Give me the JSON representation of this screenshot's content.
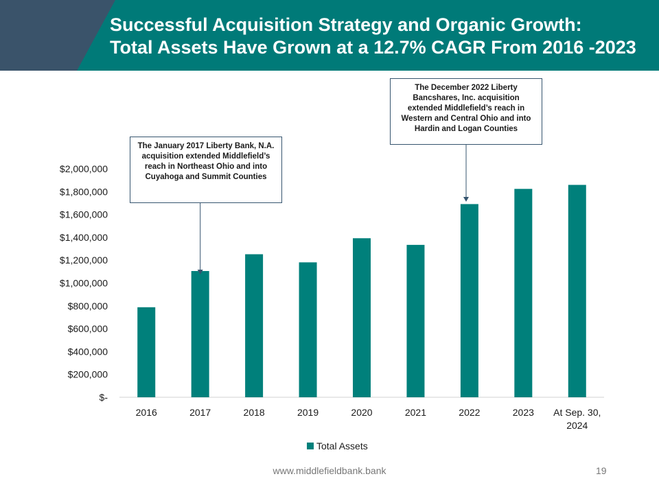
{
  "slide": {
    "title_line1": "Successful Acquisition Strategy and Organic Growth:",
    "title_line2": "Total Assets Have Grown at a 12.7% CAGR From 2016 -2023",
    "footer_url": "www.middlefieldbank.bank",
    "page_number": "19"
  },
  "colors": {
    "header_teal": "#007a78",
    "header_slate": "#3a536a",
    "bar": "#00807b"
  },
  "callouts": {
    "c2017": "The January 2017 Liberty Bank, N.A. acquisition extended Middlefield’s reach in Northeast Ohio and into Cuyahoga and Summit Counties",
    "c2022": "The December 2022 Liberty Bancshares, Inc. acquisition extended Middlefield’s reach in Western and Central Ohio and into Hardin and Logan Counties"
  },
  "chart_data": {
    "type": "bar",
    "categories": [
      "2016",
      "2017",
      "2018",
      "2019",
      "2020",
      "2021",
      "2022",
      "2023",
      "At Sep. 30, 2024"
    ],
    "series": [
      {
        "name": "Total Assets",
        "values": [
          788000,
          1105000,
          1252000,
          1181000,
          1392000,
          1334000,
          1691000,
          1824000,
          1859000
        ]
      }
    ],
    "yticks": [
      0,
      200000,
      400000,
      600000,
      800000,
      1000000,
      1200000,
      1400000,
      1600000,
      1800000,
      2000000
    ],
    "ytick_labels": [
      "$-",
      "$200,000",
      "$400,000",
      "$600,000",
      "$800,000",
      "$1,000,000",
      "$1,200,000",
      "$1,400,000",
      "$1,600,000",
      "$1,800,000",
      "$2,000,000"
    ],
    "ylim": [
      0,
      2000000
    ],
    "legend_position": "bottom"
  }
}
